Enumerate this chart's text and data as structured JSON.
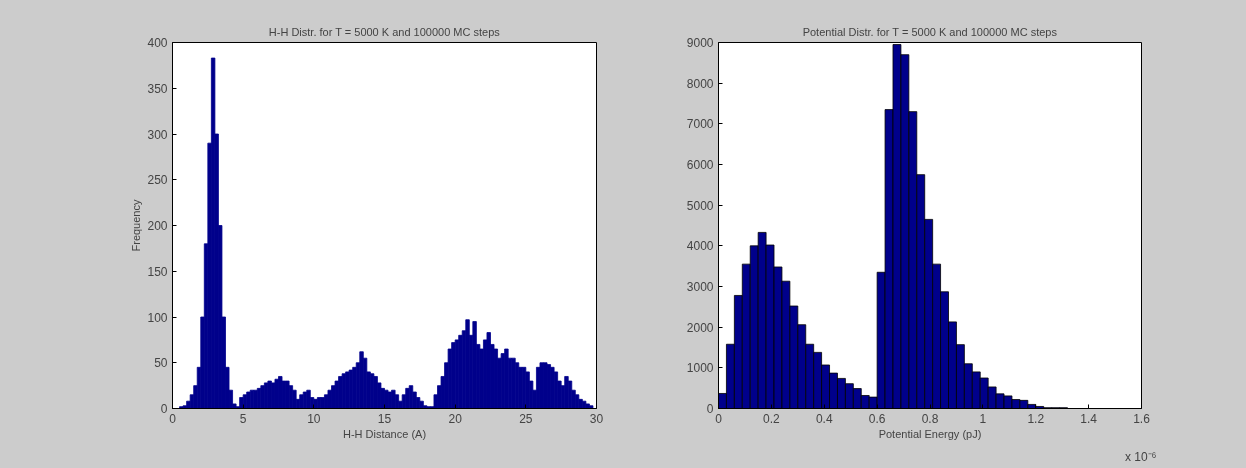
{
  "chart_data": [
    {
      "type": "histogram",
      "title": "H-H Distr. for T = 5000 K and 100000 MC steps",
      "xlabel": "H-H Distance (A)",
      "ylabel": "Frequency",
      "color": "#00008b",
      "bins": [
        0,
        0.25,
        0.5,
        0.75,
        1,
        1.25,
        1.5,
        1.75,
        2,
        2.25,
        2.5,
        2.75,
        3,
        3.25,
        3.5,
        3.75,
        4,
        4.25,
        4.5,
        4.75,
        5,
        5.25,
        5.5,
        5.75,
        6,
        6.25,
        6.5,
        6.75,
        7,
        7.25,
        7.5,
        7.75,
        8,
        8.25,
        8.5,
        8.75,
        9,
        9.25,
        9.5,
        9.75,
        10,
        10.25,
        10.5,
        10.75,
        11,
        11.25,
        11.5,
        11.75,
        12,
        12.25,
        12.5,
        12.75,
        13,
        13.25,
        13.5,
        13.75,
        14,
        14.25,
        14.5,
        14.75,
        15,
        15.25,
        15.5,
        15.75,
        16,
        16.25,
        16.5,
        16.75,
        17,
        17.25,
        17.5,
        17.75,
        18,
        18.25,
        18.5,
        18.75,
        19,
        19.25,
        19.5,
        19.75,
        20,
        20.25,
        20.5,
        20.75,
        21,
        21.25,
        21.5,
        21.75,
        22,
        22.25,
        22.5,
        22.75,
        23,
        23.25,
        23.5,
        23.75,
        24,
        24.25,
        24.5,
        24.75,
        25,
        25.25,
        25.5,
        25.75,
        26,
        26.25,
        26.5,
        26.75,
        27,
        27.25,
        27.5,
        27.75,
        28,
        28.25,
        28.5,
        28.75,
        29,
        29.25,
        29.5,
        29.75,
        30
      ],
      "values": [
        0,
        0,
        2,
        3,
        8,
        15,
        25,
        45,
        100,
        180,
        290,
        383,
        300,
        200,
        100,
        45,
        20,
        5,
        2,
        12,
        15,
        18,
        20,
        20,
        22,
        25,
        28,
        30,
        28,
        32,
        35,
        30,
        30,
        25,
        20,
        10,
        15,
        18,
        20,
        12,
        10,
        12,
        12,
        15,
        20,
        25,
        30,
        35,
        38,
        40,
        42,
        45,
        50,
        62,
        55,
        40,
        38,
        35,
        28,
        22,
        20,
        18,
        20,
        15,
        8,
        15,
        22,
        25,
        18,
        12,
        8,
        3,
        2,
        2,
        15,
        25,
        35,
        50,
        65,
        72,
        75,
        80,
        85,
        97,
        80,
        95,
        70,
        65,
        75,
        83,
        70,
        65,
        55,
        60,
        65,
        55,
        55,
        50,
        45,
        45,
        40,
        30,
        20,
        45,
        50,
        50,
        48,
        45,
        40,
        30,
        25,
        35,
        30,
        20,
        15,
        10,
        8,
        5,
        3,
        0
      ],
      "xlim": [
        0,
        30
      ],
      "xticks": [
        0,
        5,
        10,
        15,
        20,
        25,
        30
      ],
      "ylim": [
        0,
        400
      ],
      "yticks": [
        0,
        50,
        100,
        150,
        200,
        250,
        300,
        350,
        400
      ],
      "grid": false
    },
    {
      "type": "histogram",
      "title": "Potential Distr. for T = 5000 K and 100000 MC steps",
      "xlabel": "Potential Energy (pJ)",
      "color": "#00008b",
      "annotations": [
        "x 10⁻⁶"
      ],
      "bins": [
        0,
        0.03,
        0.06,
        0.09,
        0.12,
        0.15,
        0.18,
        0.21,
        0.24,
        0.27,
        0.3,
        0.33,
        0.36,
        0.39,
        0.42,
        0.45,
        0.48,
        0.51,
        0.54,
        0.57,
        0.6,
        0.63,
        0.66,
        0.69,
        0.72,
        0.75,
        0.78,
        0.81,
        0.84,
        0.87,
        0.9,
        0.93,
        0.96,
        0.99,
        1.02,
        1.05,
        1.08,
        1.11,
        1.14,
        1.17,
        1.2,
        1.23,
        1.26,
        1.29,
        1.32
      ],
      "values": [
        370,
        1580,
        2780,
        3550,
        4000,
        4330,
        4020,
        3480,
        3130,
        2520,
        2060,
        1580,
        1380,
        1070,
        870,
        740,
        610,
        490,
        320,
        280,
        3350,
        7350,
        8950,
        8700,
        7300,
        5750,
        4650,
        3550,
        2870,
        2130,
        1570,
        1100,
        900,
        750,
        530,
        360,
        310,
        220,
        200,
        100,
        50,
        20,
        20,
        20
      ],
      "xlim": [
        0,
        1.6
      ],
      "xticks": [
        0,
        0.2,
        0.4,
        0.6,
        0.8,
        1,
        1.2,
        1.4,
        1.6
      ],
      "ylim": [
        0,
        9000
      ],
      "yticks": [
        0,
        1000,
        2000,
        3000,
        4000,
        5000,
        6000,
        7000,
        8000,
        9000
      ],
      "grid": false
    }
  ]
}
